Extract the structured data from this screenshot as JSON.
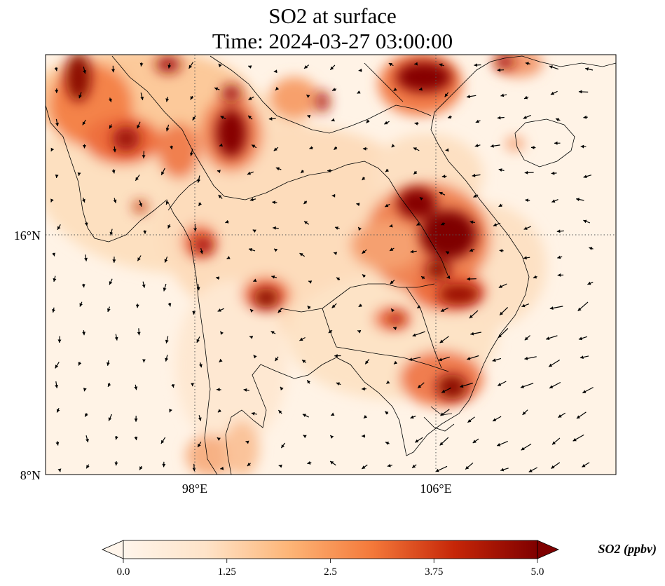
{
  "title_line1": "SO2 at surface",
  "title_line2": "Time: 2024-03-27 03:00:00",
  "map": {
    "lon_range": [
      93,
      112
    ],
    "lat_range": [
      8,
      22
    ],
    "x_ticks": [
      {
        "lon": 98,
        "label": "98°E"
      },
      {
        "lon": 106,
        "label": "106°E"
      }
    ],
    "y_ticks": [
      {
        "lat": 16,
        "label": "16°N"
      },
      {
        "lat": 8,
        "label": "8°N"
      }
    ],
    "gridlines": "dotted",
    "field": "SO2 surface concentration",
    "overlay": "wind vectors (black arrows)",
    "colormap": [
      "#fff5eb",
      "#fdd3a8",
      "#fda25b",
      "#e9562a",
      "#b31c0a",
      "#7f0000"
    ]
  },
  "colorbar": {
    "label": "SO2 (ppbv)",
    "vmin": 0.0,
    "vmax": 5.0,
    "extend": "both",
    "ticks": [
      "0.0",
      "1.25",
      "2.5",
      "3.75",
      "5.0"
    ]
  }
}
